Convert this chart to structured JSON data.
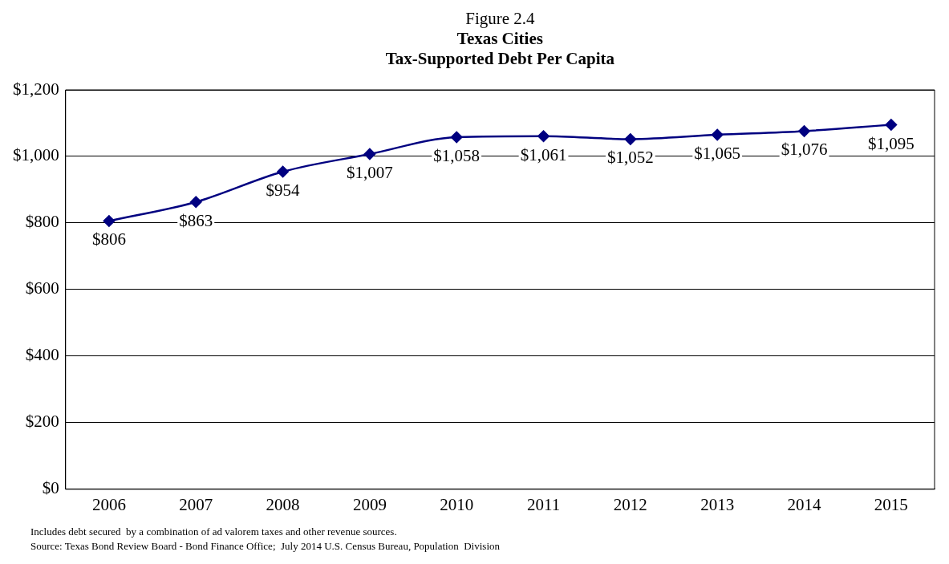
{
  "chart_data": {
    "type": "line",
    "title": "Figure 2.4\nTexas Cities\nTax-Supported Debt Per Capita",
    "categories": [
      "2006",
      "2007",
      "2008",
      "2009",
      "2010",
      "2011",
      "2012",
      "2013",
      "2014",
      "2015"
    ],
    "series": [
      {
        "color": "#000080",
        "values": [
          806,
          863,
          954,
          1007,
          1058,
          1061,
          1052,
          1065,
          1076,
          1095
        ],
        "value_labels": [
          "$806",
          "$863",
          "$954",
          "$1,007",
          "$1,058",
          "$1,061",
          "$1,052",
          "$1,065",
          "$1,076",
          "$1,095"
        ]
      }
    ],
    "ylim": [
      0,
      1200
    ],
    "yticks": [
      {
        "value": 0,
        "label": "$0"
      },
      {
        "value": 200,
        "label": "$200"
      },
      {
        "value": 400,
        "label": "$400"
      },
      {
        "value": 600,
        "label": "$600"
      },
      {
        "value": 800,
        "label": "$800"
      },
      {
        "value": 1000,
        "label": "$1,000"
      },
      {
        "value": 1200,
        "label": "$1,200"
      }
    ],
    "grid": "y",
    "legend": false,
    "marker": "diamond",
    "line_style": "solid",
    "annotations": [
      "Includes debt secured  by a combination of ad valorem taxes and other revenue sources.",
      "Source: Texas Bond Review Board - Bond Finance Office;  July 2014 U.S. Census Bureau, Population  Division"
    ]
  }
}
